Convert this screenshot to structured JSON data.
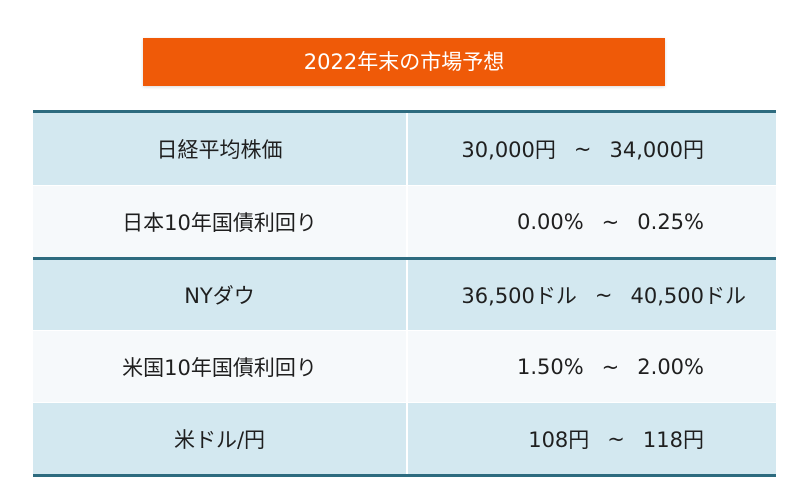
{
  "title": "2022年末の市場予想",
  "rows": [
    {
      "label": "日経平均株価",
      "low": "30,000円",
      "high": "34,000円",
      "sep": "~"
    },
    {
      "label": "日本10年国債利回り",
      "low": "0.00%",
      "high": "0.25%",
      "sep": "~"
    },
    {
      "label": "NYダウ",
      "low": "36,500ドル",
      "high": "40,500ドル",
      "sep": "~"
    },
    {
      "label": "米国10年国債利回り",
      "low": "1.50%",
      "high": "2.00%",
      "sep": "~"
    },
    {
      "label": "米ドル/円",
      "low": "108円",
      "high": "118円",
      "sep": "~"
    }
  ],
  "colors": {
    "title_bg": "#ef5a08",
    "rule": "#2d6b7f",
    "row_blue": "#d3e8f0",
    "row_white": "#f6f9fb"
  }
}
